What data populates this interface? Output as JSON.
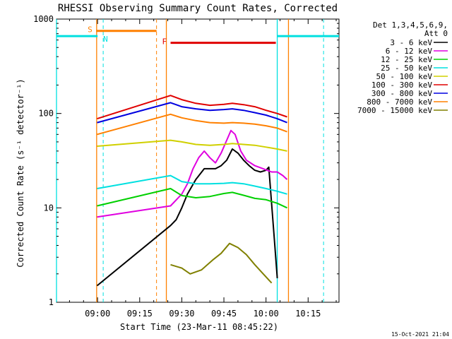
{
  "chart_data": {
    "type": "line",
    "title": "RHESSI Observing Summary Count Rates, Corrected",
    "ylabel": "Corrected Count Rate (s⁻¹ detector⁻¹)",
    "xlabel": "Start Time (23-Mar-11 08:45:22)",
    "footer_timestamp": "15-Oct-2021 21:04",
    "y_scale": "log",
    "ylim": [
      1,
      1000
    ],
    "xlim": [
      "08:45:22",
      "10:26:00"
    ],
    "y_ticks": [
      {
        "value": 1,
        "label": "1"
      },
      {
        "value": 10,
        "label": "10"
      },
      {
        "value": 100,
        "label": "100"
      },
      {
        "value": 1000,
        "label": "1000"
      }
    ],
    "x_ticks": [
      "09:00",
      "09:15",
      "09:30",
      "09:45",
      "10:00",
      "10:15"
    ],
    "legend_position": "right",
    "legend_header": [
      "Det 1,3,4,5,6,9,",
      "Att 0"
    ],
    "series": [
      {
        "name": "3 - 6 keV",
        "color": "#000000",
        "x": [
          "08:59:50",
          "09:26:00",
          "09:28:00",
          "09:30:00",
          "09:32:00",
          "09:35:00",
          "09:38:00",
          "09:40:00",
          "09:42:00",
          "09:44:00",
          "09:46:00",
          "09:48:00",
          "09:50:00",
          "09:52:00",
          "09:54:00",
          "09:56:00",
          "09:58:00",
          "10:00:00",
          "10:01:00",
          "10:03:00",
          "10:04:00"
        ],
        "y": [
          1.5,
          6.5,
          7.5,
          10,
          14,
          20,
          26,
          26,
          26,
          28,
          32,
          42,
          38,
          32,
          28,
          25,
          24,
          25,
          27,
          4.5,
          1.8
        ]
      },
      {
        "name": "6 - 12 keV",
        "color": "#e000e0",
        "x": [
          "08:59:50",
          "09:26:00",
          "09:30:00",
          "09:32:00",
          "09:34:00",
          "09:36:00",
          "09:38:00",
          "09:40:00",
          "09:42:00",
          "09:44:00",
          "09:46:00",
          "09:47:30",
          "09:49:00",
          "09:51:00",
          "09:53:00",
          "09:56:00",
          "09:59:00",
          "10:02:00",
          "10:04:00",
          "10:06:00",
          "10:07:30"
        ],
        "y": [
          8,
          10.5,
          14,
          18,
          26,
          34,
          40,
          34,
          30,
          38,
          52,
          66,
          60,
          40,
          32,
          28,
          26,
          24,
          24,
          22,
          20
        ]
      },
      {
        "name": "12 - 25 keV",
        "color": "#00d000",
        "x": [
          "08:59:50",
          "09:26:00",
          "09:30:00",
          "09:35:00",
          "09:40:00",
          "09:45:00",
          "09:48:00",
          "09:52:00",
          "09:56:00",
          "10:00:00",
          "10:04:00",
          "10:07:30"
        ],
        "y": [
          10.5,
          16,
          13.5,
          12.8,
          13.2,
          14.2,
          14.6,
          13.6,
          12.6,
          12.2,
          11.2,
          10
        ]
      },
      {
        "name": "25 - 50 keV",
        "color": "#00e0e0",
        "x": [
          "08:59:50",
          "09:26:00",
          "09:30:00",
          "09:35:00",
          "09:40:00",
          "09:45:00",
          "09:48:00",
          "09:52:00",
          "09:56:00",
          "10:00:00",
          "10:04:00",
          "10:07:30"
        ],
        "y": [
          16,
          22,
          19,
          18,
          18,
          18.2,
          18.5,
          18,
          17,
          16,
          15,
          14
        ]
      },
      {
        "name": "50 - 100 keV",
        "color": "#d0d000",
        "x": [
          "08:59:50",
          "09:26:00",
          "09:30:00",
          "09:35:00",
          "09:40:00",
          "09:45:00",
          "09:48:00",
          "09:52:00",
          "09:56:00",
          "10:00:00",
          "10:04:00",
          "10:07:30"
        ],
        "y": [
          45,
          52,
          50,
          47,
          46,
          47,
          48,
          47,
          46,
          44,
          42,
          40
        ]
      },
      {
        "name": "100 - 300 keV",
        "color": "#e00000",
        "x": [
          "08:59:50",
          "09:26:00",
          "09:30:00",
          "09:35:00",
          "09:40:00",
          "09:45:00",
          "09:48:00",
          "09:52:00",
          "09:56:00",
          "10:00:00",
          "10:04:00",
          "10:07:30"
        ],
        "y": [
          88,
          155,
          140,
          128,
          122,
          125,
          128,
          124,
          118,
          108,
          100,
          92
        ]
      },
      {
        "name": "300 - 800 keV",
        "color": "#0000e0",
        "x": [
          "08:59:50",
          "09:26:00",
          "09:30:00",
          "09:35:00",
          "09:40:00",
          "09:45:00",
          "09:48:00",
          "09:52:00",
          "09:56:00",
          "10:00:00",
          "10:04:00",
          "10:07:30"
        ],
        "y": [
          80,
          130,
          118,
          112,
          108,
          110,
          112,
          108,
          102,
          96,
          88,
          80
        ]
      },
      {
        "name": "800 - 7000 keV",
        "color": "#ff8000",
        "x": [
          "08:59:50",
          "09:26:00",
          "09:30:00",
          "09:35:00",
          "09:40:00",
          "09:45:00",
          "09:48:00",
          "09:52:00",
          "09:56:00",
          "10:00:00",
          "10:04:00",
          "10:07:30"
        ],
        "y": [
          60,
          98,
          90,
          84,
          80,
          79,
          80,
          79,
          77,
          74,
          70,
          64
        ]
      },
      {
        "name": "7000 - 15000 keV",
        "color": "#808000",
        "x": [
          "09:26:00",
          "09:30:00",
          "09:33:00",
          "09:37:00",
          "09:41:00",
          "09:44:00",
          "09:47:00",
          "09:50:00",
          "09:53:00",
          "09:56:00",
          "09:59:00",
          "10:02:00"
        ],
        "y": [
          2.5,
          2.3,
          2.0,
          2.2,
          2.8,
          3.3,
          4.2,
          3.8,
          3.2,
          2.5,
          2.0,
          1.6
        ]
      }
    ],
    "flag_bars": [
      {
        "label": "S",
        "color": "#ff8000",
        "start": "08:59:30",
        "end": "09:21:00",
        "y": 750
      },
      {
        "label": "N",
        "color": "#00e0e0",
        "start": "08:45:22",
        "end": "09:00:00",
        "y": 660
      },
      {
        "label": "",
        "color": "#00e0e0",
        "start": "10:04:00",
        "end": "10:26:00",
        "y": 660
      },
      {
        "label": "F",
        "color": "#e00000",
        "start": "09:26:00",
        "end": "10:03:30",
        "y": 560
      }
    ],
    "solid_vlines": [
      {
        "t": "08:45:22",
        "color": "#00e0e0"
      },
      {
        "t": "08:59:40",
        "color": "#ff8000"
      },
      {
        "t": "09:24:30",
        "color": "#ff8000"
      },
      {
        "t": "10:04:00",
        "color": "#00e0e0"
      },
      {
        "t": "10:08:00",
        "color": "#ff8000"
      }
    ],
    "dashed_vlines": [
      {
        "t": "09:02:00",
        "color": "#00e0e0"
      },
      {
        "t": "09:21:00",
        "color": "#ff8000"
      },
      {
        "t": "10:20:30",
        "color": "#00e0e0"
      }
    ]
  }
}
